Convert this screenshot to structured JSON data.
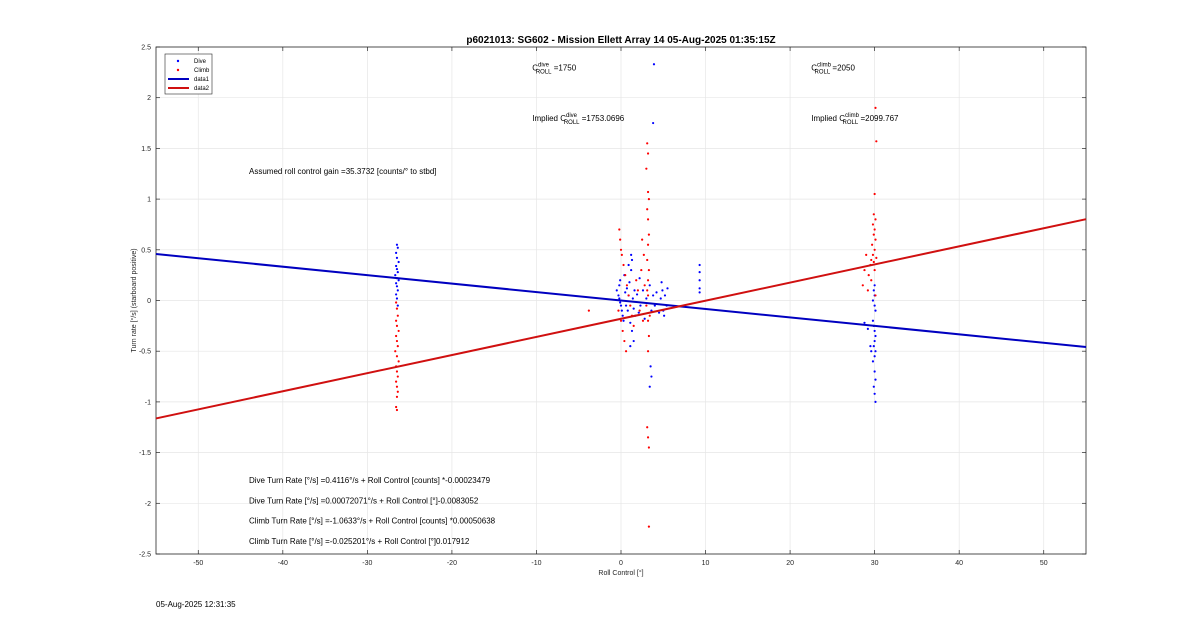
{
  "chart_data": {
    "type": "scatter",
    "title": "p6021013: SG602 - Mission Ellett Array 14 05-Aug-2025 01:35:15Z",
    "xlabel": "Roll Control [°]",
    "ylabel": "Turn rate [°/s] (starboard positive)",
    "xlim": [
      -55,
      55
    ],
    "ylim": [
      -2.5,
      2.5
    ],
    "xticks": [
      -50,
      -40,
      -30,
      -20,
      -10,
      0,
      10,
      20,
      30,
      40,
      50
    ],
    "yticks": [
      -2.5,
      -2,
      -1.5,
      -1,
      -0.5,
      0,
      0.5,
      1,
      1.5,
      2,
      2.5
    ],
    "grid": true,
    "legend_position": "top-left",
    "colors": {
      "dive": "#0000ff",
      "climb": "#ff0000",
      "data1": "#0000c0",
      "data2": "#d01010"
    },
    "series": [
      {
        "name": "Dive",
        "kind": "points",
        "points": [
          [
            -26.5,
            0.55
          ],
          [
            -26.4,
            0.52
          ],
          [
            -26.6,
            0.47
          ],
          [
            -26.5,
            0.42
          ],
          [
            -26.3,
            0.38
          ],
          [
            -26.6,
            0.34
          ],
          [
            -26.5,
            0.31
          ],
          [
            -26.4,
            0.28
          ],
          [
            -26.7,
            0.25
          ],
          [
            -26.5,
            0.22
          ],
          [
            -26.3,
            0.2
          ],
          [
            -26.6,
            0.17
          ],
          [
            -26.5,
            0.14
          ],
          [
            -26.4,
            0.1
          ],
          [
            -26.6,
            0.06
          ],
          [
            -26.5,
            0.02
          ],
          [
            -26.4,
            -0.05
          ],
          [
            -0.5,
            0.1
          ],
          [
            -0.3,
            0.05
          ],
          [
            -0.2,
            0.02
          ],
          [
            -0.1,
            -0.02
          ],
          [
            0,
            -0.05
          ],
          [
            0.1,
            -0.1
          ],
          [
            0.2,
            -0.15
          ],
          [
            -0.2,
            0.15
          ],
          [
            -0.1,
            0.2
          ],
          [
            0.3,
            -0.2
          ],
          [
            0.4,
            0.25
          ],
          [
            0.5,
            0.08
          ],
          [
            0.6,
            -0.05
          ],
          [
            0.7,
            0.12
          ],
          [
            0.8,
            -0.1
          ],
          [
            0.9,
            0.05
          ],
          [
            1,
            0.18
          ],
          [
            1.1,
            -0.22
          ],
          [
            1.2,
            0.3
          ],
          [
            1.3,
            -0.3
          ],
          [
            1.4,
            0.02
          ],
          [
            1.5,
            -0.08
          ],
          [
            1.6,
            0.1
          ],
          [
            1.7,
            -0.15
          ],
          [
            1.9,
            0.06
          ],
          [
            2.1,
            -0.12
          ],
          [
            2.2,
            0.22
          ],
          [
            2.3,
            -0.05
          ],
          [
            1.2,
            0.45
          ],
          [
            1.3,
            0.4
          ],
          [
            1.1,
            -0.45
          ],
          [
            1.5,
            -0.4
          ],
          [
            0.9,
            0.35
          ],
          [
            2.6,
            0.1
          ],
          [
            2.8,
            -0.18
          ],
          [
            3,
            0.02
          ],
          [
            3.4,
            0.15
          ],
          [
            3.6,
            -0.1
          ],
          [
            3.8,
            0.05
          ],
          [
            4,
            -0.05
          ],
          [
            4.2,
            0.08
          ],
          [
            4.5,
            -0.12
          ],
          [
            4.7,
            0.02
          ],
          [
            4.9,
            0.1
          ],
          [
            5,
            -0.1
          ],
          [
            5.2,
            0.05
          ],
          [
            5.4,
            -0.05
          ],
          [
            5.5,
            0.12
          ],
          [
            5.1,
            -0.15
          ],
          [
            4.8,
            0.18
          ],
          [
            3.5,
            -0.65
          ],
          [
            3.6,
            -0.75
          ],
          [
            3.4,
            -0.85
          ],
          [
            3.9,
            2.33
          ],
          [
            3.8,
            1.75
          ],
          [
            9.3,
            0.35
          ],
          [
            9.3,
            0.28
          ],
          [
            9.3,
            0.2
          ],
          [
            9.3,
            0.12
          ],
          [
            9.3,
            0.08
          ],
          [
            29.8,
            -0.2
          ],
          [
            29.9,
            -0.25
          ],
          [
            30,
            -0.3
          ],
          [
            30.1,
            -0.35
          ],
          [
            30,
            -0.4
          ],
          [
            29.9,
            -0.45
          ],
          [
            30.1,
            -0.5
          ],
          [
            30,
            -0.55
          ],
          [
            29.8,
            -0.6
          ],
          [
            30,
            -0.7
          ],
          [
            30.1,
            -0.78
          ],
          [
            29.9,
            -0.85
          ],
          [
            30,
            -0.92
          ],
          [
            30.1,
            -1.0
          ],
          [
            30,
            0.15
          ],
          [
            30,
            0.05
          ],
          [
            29.9,
            0.1
          ],
          [
            30.1,
            -0.1
          ],
          [
            29.8,
            0.0
          ],
          [
            30,
            -0.05
          ],
          [
            28.8,
            -0.22
          ],
          [
            29.2,
            -0.28
          ],
          [
            29.5,
            -0.45
          ],
          [
            29.6,
            -0.5
          ]
        ]
      },
      {
        "name": "Climb",
        "kind": "points",
        "points": [
          [
            -26.6,
            -0.02
          ],
          [
            -26.5,
            -0.08
          ],
          [
            -26.4,
            -0.15
          ],
          [
            -26.6,
            -0.2
          ],
          [
            -26.5,
            -0.25
          ],
          [
            -26.3,
            -0.3
          ],
          [
            -26.6,
            -0.35
          ],
          [
            -26.5,
            -0.4
          ],
          [
            -26.4,
            -0.45
          ],
          [
            -26.7,
            -0.5
          ],
          [
            -26.5,
            -0.55
          ],
          [
            -26.3,
            -0.6
          ],
          [
            -26.6,
            -0.65
          ],
          [
            -26.5,
            -0.7
          ],
          [
            -26.4,
            -0.75
          ],
          [
            -26.6,
            -0.8
          ],
          [
            -26.5,
            -0.85
          ],
          [
            -26.4,
            -0.9
          ],
          [
            -26.5,
            -0.95
          ],
          [
            -26.6,
            -1.05
          ],
          [
            -26.5,
            -1.08
          ],
          [
            -0.2,
            0.7
          ],
          [
            -0.1,
            0.6
          ],
          [
            0,
            0.5
          ],
          [
            0.1,
            0.45
          ],
          [
            0.3,
            0.35
          ],
          [
            0.5,
            0.25
          ],
          [
            0.7,
            0.15
          ],
          [
            0.9,
            0.05
          ],
          [
            1.1,
            -0.05
          ],
          [
            1.3,
            -0.15
          ],
          [
            1.5,
            -0.25
          ],
          [
            0.2,
            -0.3
          ],
          [
            0.4,
            -0.4
          ],
          [
            0.6,
            -0.5
          ],
          [
            0,
            -0.2
          ],
          [
            -0.3,
            -0.1
          ],
          [
            1.8,
            0.2
          ],
          [
            2,
            0.1
          ],
          [
            2.2,
            -0.1
          ],
          [
            2.4,
            0.3
          ],
          [
            2.6,
            -0.2
          ],
          [
            2.8,
            0.15
          ],
          [
            3,
            -0.05
          ],
          [
            3.2,
            0.05
          ],
          [
            3.4,
            -0.15
          ],
          [
            2.5,
            0.6
          ],
          [
            2.7,
            0.45
          ],
          [
            -3.8,
            -0.1
          ],
          [
            3.1,
            1.55
          ],
          [
            3.2,
            1.45
          ],
          [
            3.0,
            1.3
          ],
          [
            3.2,
            1.07
          ],
          [
            3.3,
            1.0
          ],
          [
            3.1,
            0.9
          ],
          [
            3.2,
            0.8
          ],
          [
            3.3,
            0.65
          ],
          [
            3.2,
            0.55
          ],
          [
            3.1,
            0.4
          ],
          [
            3.3,
            0.3
          ],
          [
            3.2,
            0.2
          ],
          [
            3.1,
            0.1
          ],
          [
            3.2,
            -0.2
          ],
          [
            3.3,
            -0.35
          ],
          [
            3.2,
            -0.5
          ],
          [
            3.1,
            -1.25
          ],
          [
            3.2,
            -1.35
          ],
          [
            3.3,
            -1.45
          ],
          [
            3.3,
            -2.23
          ],
          [
            30.1,
            1.9
          ],
          [
            30.2,
            1.57
          ],
          [
            30.0,
            1.05
          ],
          [
            29.9,
            0.85
          ],
          [
            30.1,
            0.8
          ],
          [
            29.8,
            0.75
          ],
          [
            30,
            0.7
          ],
          [
            29.9,
            0.65
          ],
          [
            30.1,
            0.6
          ],
          [
            29.7,
            0.55
          ],
          [
            30,
            0.5
          ],
          [
            29.8,
            0.45
          ],
          [
            30.2,
            0.42
          ],
          [
            29.6,
            0.4
          ],
          [
            29.9,
            0.38
          ],
          [
            29.5,
            0.35
          ],
          [
            30,
            0.3
          ],
          [
            29.3,
            0.25
          ],
          [
            29.6,
            0.2
          ],
          [
            29.0,
            0.45
          ],
          [
            28.8,
            0.3
          ],
          [
            28.6,
            0.15
          ],
          [
            29.2,
            0.1
          ],
          [
            30.1,
            0.05
          ]
        ]
      },
      {
        "name": "data1",
        "kind": "line",
        "x": [
          -55,
          55
        ],
        "y": [
          0.4585,
          -0.4587
        ]
      },
      {
        "name": "data2",
        "kind": "line",
        "x": [
          -55,
          55
        ],
        "y": [
          -1.163,
          0.8021
        ]
      }
    ],
    "annotations": [
      {
        "text": "C",
        "sup": "dive",
        "sub": "ROLL",
        "tail": " =1750",
        "x": -10.5,
        "y": 2.27
      },
      {
        "text": "C",
        "sup": "climb",
        "sub": "ROLL",
        "tail": " =2050",
        "x": 22.5,
        "y": 2.27
      },
      {
        "text": "Implied C",
        "sup": "dive",
        "sub": "ROLL",
        "tail": " =1753.0696",
        "x": -10.5,
        "y": 1.77
      },
      {
        "text": "Implied C",
        "sup": "climb",
        "sub": "ROLL",
        "tail": " =2099.767",
        "x": 22.5,
        "y": 1.77
      },
      {
        "text": "Assumed roll control gain =35.3732 [counts/° to stbd]",
        "x": -44,
        "y": 1.25
      },
      {
        "text": "Dive Turn Rate [°/s] =0.4116°/s + Roll Control [counts] *-0.00023479",
        "x": -44,
        "y": -1.8
      },
      {
        "text": "Dive Turn Rate [°/s] =0.00072071°/s + Roll Control [°]-0.0083052",
        "x": -44,
        "y": -2.0
      },
      {
        "text": "Climb Turn Rate [°/s] =-1.0633°/s + Roll Control [counts] *0.00050638",
        "x": -44,
        "y": -2.2
      },
      {
        "text": "Climb Turn Rate [°/s] =-0.025201°/s + Roll Control [°]0.017912",
        "x": -44,
        "y": -2.4
      }
    ]
  },
  "timestamp": "05-Aug-2025 12:31:35"
}
